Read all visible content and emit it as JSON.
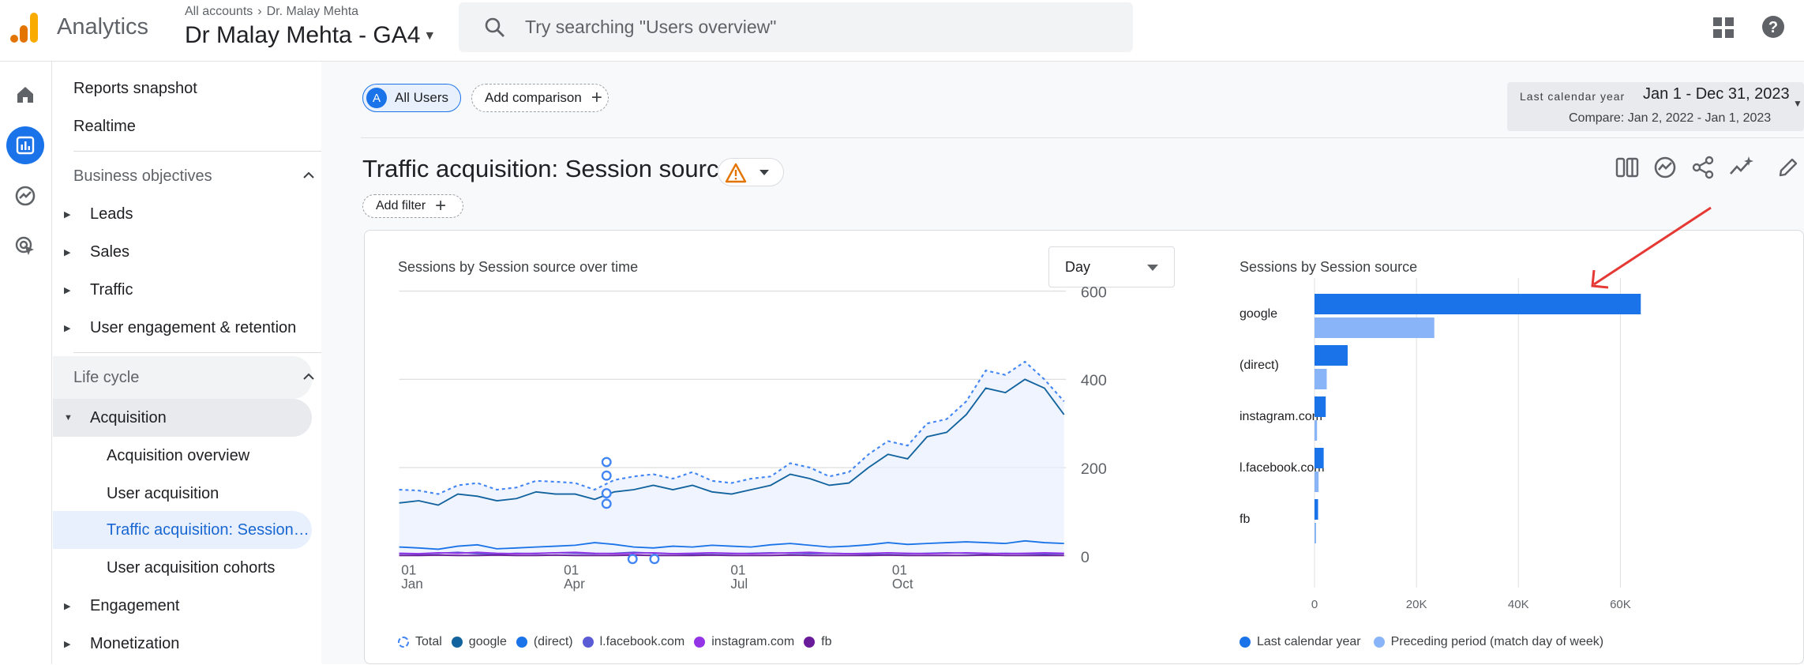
{
  "app": {
    "name": "Analytics"
  },
  "header": {
    "breadcrumb": [
      "All accounts",
      "Dr. Malay Mehta"
    ],
    "property": "Dr Malay Mehta - GA4",
    "search_placeholder": "Try searching \"Users overview\""
  },
  "sidebar": {
    "top_items": [
      "Reports snapshot",
      "Realtime"
    ],
    "business_objectives": {
      "label": "Business objectives",
      "items": [
        "Leads",
        "Sales",
        "Traffic",
        "User engagement & retention"
      ]
    },
    "life_cycle": {
      "label": "Life cycle",
      "acquisition": "Acquisition",
      "acquisition_items": [
        "Acquisition overview",
        "User acquisition",
        "Traffic acquisition: Session…",
        "User acquisition cohorts"
      ],
      "more": [
        "Engagement",
        "Monetization"
      ]
    }
  },
  "toolbar": {
    "segment_badge": "A",
    "segment": "All Users",
    "add_comparison": "Add comparison",
    "date_label": "Last calendar year",
    "date_range": "Jan 1 - Dec 31, 2023",
    "compare": "Compare: Jan 2, 2022 - Jan 1, 2023",
    "add_filter": "Add filter"
  },
  "page": {
    "title": "Traffic acquisition: Session source"
  },
  "chart_data": [
    {
      "type": "line",
      "title": "Sessions by Session source over time",
      "granularity": "Day",
      "x_ticks": [
        [
          "01",
          "Jan"
        ],
        [
          "01",
          "Apr"
        ],
        [
          "01",
          "Jul"
        ],
        [
          "01",
          "Oct"
        ]
      ],
      "y_ticks": [
        "600",
        "400",
        "200",
        "0"
      ],
      "ylim": [
        0,
        600
      ],
      "series": [
        {
          "name": "Total",
          "color": "#4285f4",
          "style": "dotted",
          "values": [
            150,
            148,
            140,
            160,
            165,
            150,
            155,
            170,
            168,
            165,
            150,
            172,
            180,
            185,
            175,
            190,
            170,
            165,
            175,
            180,
            210,
            200,
            180,
            190,
            230,
            260,
            250,
            300,
            310,
            350,
            420,
            410,
            440,
            400,
            350
          ]
        },
        {
          "name": "google",
          "color": "#12639e",
          "values": [
            120,
            125,
            115,
            140,
            135,
            125,
            130,
            145,
            140,
            140,
            128,
            145,
            150,
            160,
            150,
            160,
            145,
            140,
            150,
            160,
            185,
            175,
            160,
            165,
            200,
            230,
            220,
            270,
            280,
            320,
            380,
            370,
            400,
            380,
            320
          ]
        },
        {
          "name": "(direct)",
          "color": "#1a73e8",
          "values": [
            20,
            18,
            15,
            22,
            25,
            16,
            18,
            20,
            22,
            24,
            30,
            26,
            20,
            18,
            22,
            20,
            24,
            22,
            20,
            25,
            28,
            24,
            20,
            22,
            25,
            30,
            26,
            28,
            30,
            32,
            30,
            28,
            34,
            30,
            28
          ]
        },
        {
          "name": "l.facebook.com",
          "color": "#5b5bd6",
          "values": [
            5,
            4,
            6,
            8,
            5,
            4,
            6,
            5,
            7,
            6,
            5,
            6,
            8,
            6,
            5,
            4,
            6,
            5,
            6,
            7,
            6,
            5,
            6,
            5,
            4,
            6,
            5,
            6,
            7,
            6,
            5,
            6,
            5,
            4,
            5
          ]
        },
        {
          "name": "instagram.com",
          "color": "#9334e6",
          "values": [
            6,
            5,
            7,
            6,
            8,
            6,
            5,
            6,
            7,
            8,
            6,
            5,
            6,
            7,
            5,
            6,
            7,
            6,
            5,
            6,
            7,
            8,
            6,
            5,
            6,
            7,
            6,
            5,
            6,
            7,
            6,
            5,
            6,
            7,
            6
          ]
        },
        {
          "name": "fb",
          "color": "#6a1b9a",
          "values": [
            1,
            1,
            2,
            1,
            1,
            2,
            1,
            1,
            2,
            1,
            1,
            1,
            2,
            1,
            1,
            1,
            2,
            1,
            1,
            1,
            2,
            1,
            1,
            1,
            1,
            2,
            1,
            1,
            1,
            1,
            2,
            1,
            1,
            1,
            1
          ]
        }
      ]
    },
    {
      "type": "bar",
      "title": "Sessions by Session source",
      "categories": [
        "google",
        "(direct)",
        "instagram.com",
        "l.facebook.com",
        "fb"
      ],
      "x_ticks": [
        "0",
        "20K",
        "40K",
        "60K"
      ],
      "xlim": [
        0,
        70000
      ],
      "series": [
        {
          "name": "Last calendar year",
          "color": "#1a73e8",
          "values": [
            64000,
            6500,
            2200,
            1800,
            700
          ]
        },
        {
          "name": "Preceding period (match day of week)",
          "color": "#8ab4f8",
          "values": [
            23500,
            2400,
            500,
            800,
            150
          ]
        }
      ]
    }
  ]
}
